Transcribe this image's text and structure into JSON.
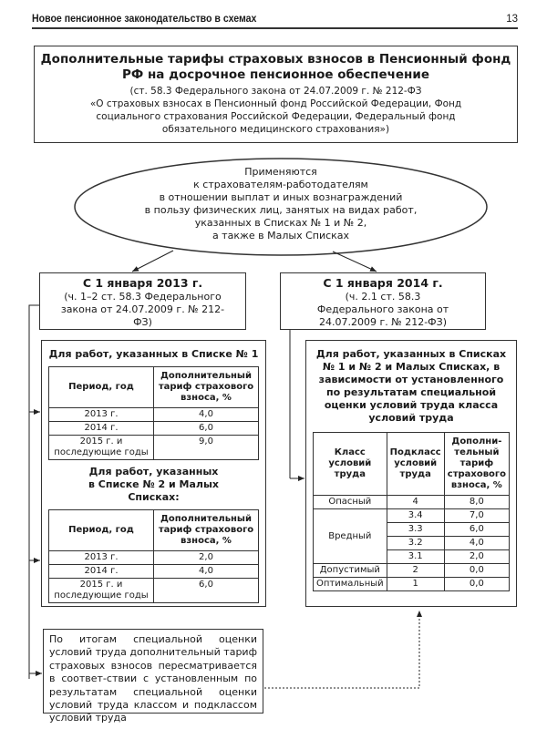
{
  "header": {
    "title": "Новое пенсионное законодательство в схемах",
    "page": "13"
  },
  "title_box": {
    "heading": "Дополнительные тарифы страховых взносов в Пенсионный фонд РФ на досрочное пенсионное обеспечение",
    "source_line1": "(ст. 58.3 Федерального закона от 24.07.2009 г. № 212-ФЗ",
    "source_line2": "«О страховых взносах в Пенсионный фонд Российской Федерации, Фонд социального страхования Российской Федерации, Федеральный фонд обязательного медицинского страхования»)"
  },
  "ellipse": {
    "lines": [
      "Применяются",
      "к страхователям-работодателям",
      "в отношении выплат и иных вознаграждений",
      "в пользу физических лиц, занятых на видах работ,",
      "указанных в Списках № 1 и № 2,",
      "а также в Малых Списках"
    ]
  },
  "left_date": {
    "date": "С 1 января 2013 г.",
    "ref": "(ч. 1–2 ст. 58.3 Федерального закона от 24.07.2009 г. № 212-ФЗ)"
  },
  "right_date": {
    "date": "С 1 января 2014 г.",
    "ref": "(ч. 2.1 ст. 58.3 Федерального закона от 24.07.2009 г. № 212-ФЗ)"
  },
  "list1": {
    "heading": "Для работ, указанных в Списке № 1",
    "columns": [
      "Период, год",
      "Дополнительный тариф страхового взноса, %"
    ],
    "rows": [
      [
        "2013 г.",
        "4,0"
      ],
      [
        "2014 г.",
        "6,0"
      ],
      [
        "2015 г. и последующие годы",
        "9,0"
      ]
    ]
  },
  "list2": {
    "heading": "Для работ, указанных в Списке № 2 и Малых Списках:",
    "columns": [
      "Период, год",
      "Дополнительный тариф страхового взноса, %"
    ],
    "rows": [
      [
        "2013 г.",
        "2,0"
      ],
      [
        "2014 г.",
        "4,0"
      ],
      [
        "2015 г. и последующие годы",
        "6,0"
      ]
    ]
  },
  "classes": {
    "heading": "Для работ, указанных в Списках № 1 и № 2 и Малых Списках, в зависимости от установленного по результатам специальной оценки условий труда класса условий труда",
    "columns": [
      "Класс условий труда",
      "Подкласс условий труда",
      "Дополни-тельный тариф страхового взноса, %"
    ],
    "rows": [
      {
        "cls": "Опасный",
        "sub": "4",
        "rate": "8,0"
      },
      {
        "cls": "Вредный",
        "sub": "3.4",
        "rate": "7,0"
      },
      {
        "cls": "",
        "sub": "3.3",
        "rate": "6,0"
      },
      {
        "cls": "",
        "sub": "3.2",
        "rate": "4,0"
      },
      {
        "cls": "",
        "sub": "3.1",
        "rate": "2,0"
      },
      {
        "cls": "Допустимый",
        "sub": "2",
        "rate": "0,0"
      },
      {
        "cls": "Оптимальный",
        "sub": "1",
        "rate": "0,0"
      }
    ]
  },
  "note": "По итогам специальной оценки условий труда дополнительный тариф страховых взносов пересматривается в соответ-ствии с установленным по результатам специальной оценки условий труда классом и подклассом условий труда"
}
